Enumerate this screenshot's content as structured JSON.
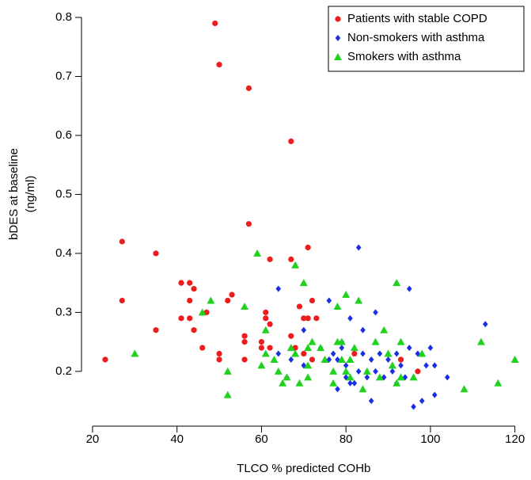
{
  "chart_data": {
    "type": "scatter",
    "xlabel": "TLCO % predicted COHb",
    "ylabel": [
      "bDES at baseline",
      "(ng/ml)"
    ],
    "xlim": [
      17.5,
      122.5
    ],
    "ylim": [
      0.13,
      0.8
    ],
    "xticks": [
      20,
      40,
      60,
      80,
      100,
      120
    ],
    "yticks": [
      0.2,
      0.3,
      0.4,
      0.5,
      0.6,
      0.7,
      0.8
    ],
    "legend": "top-right",
    "series": [
      {
        "name": "Patients with stable COPD",
        "color": "#ee1c1c",
        "marker": "circle",
        "x": [
          23,
          27,
          27,
          35,
          35,
          41,
          41,
          43,
          43,
          43,
          44,
          44,
          46,
          47,
          49,
          50,
          50,
          50,
          52,
          53,
          56,
          56,
          56,
          57,
          57,
          60,
          60,
          61,
          61,
          62,
          62,
          62,
          67,
          67,
          67,
          68,
          69,
          70,
          70,
          71,
          71,
          72,
          72,
          73,
          82,
          93,
          97
        ],
        "values": [
          0.22,
          0.42,
          0.32,
          0.4,
          0.27,
          0.35,
          0.29,
          0.35,
          0.32,
          0.29,
          0.34,
          0.27,
          0.24,
          0.3,
          0.79,
          0.72,
          0.23,
          0.22,
          0.32,
          0.33,
          0.26,
          0.25,
          0.22,
          0.68,
          0.45,
          0.25,
          0.24,
          0.3,
          0.29,
          0.39,
          0.28,
          0.24,
          0.59,
          0.39,
          0.26,
          0.24,
          0.31,
          0.29,
          0.23,
          0.41,
          0.29,
          0.32,
          0.22,
          0.29,
          0.23,
          0.22,
          0.2
        ]
      },
      {
        "name": "Non-smokers with asthma",
        "color": "#1a2ee6",
        "marker": "diamond",
        "x": [
          64,
          64,
          66,
          67,
          70,
          70,
          74,
          76,
          76,
          77,
          78,
          78,
          79,
          79,
          80,
          80,
          81,
          81,
          82,
          83,
          83,
          84,
          84,
          85,
          86,
          86,
          87,
          87,
          88,
          89,
          90,
          91,
          92,
          92,
          93,
          94,
          95,
          95,
          96,
          97,
          98,
          99,
          100,
          101,
          101,
          104,
          113
        ],
        "values": [
          0.34,
          0.23,
          0.19,
          0.22,
          0.27,
          0.21,
          0.24,
          0.32,
          0.22,
          0.23,
          0.17,
          0.22,
          0.25,
          0.24,
          0.21,
          0.19,
          0.29,
          0.18,
          0.18,
          0.41,
          0.2,
          0.27,
          0.23,
          0.19,
          0.22,
          0.15,
          0.3,
          0.2,
          0.23,
          0.19,
          0.22,
          0.2,
          0.23,
          0.18,
          0.21,
          0.19,
          0.34,
          0.24,
          0.14,
          0.23,
          0.15,
          0.21,
          0.24,
          0.21,
          0.16,
          0.19,
          0.28
        ]
      },
      {
        "name": "Smokers with asthma",
        "color": "#1ed21e",
        "marker": "triangle",
        "x": [
          30,
          46,
          48,
          52,
          52,
          56,
          59,
          60,
          61,
          61,
          63,
          64,
          65,
          66,
          67,
          68,
          68,
          69,
          70,
          71,
          71,
          71,
          72,
          74,
          75,
          77,
          77,
          78,
          78,
          79,
          79,
          80,
          80,
          81,
          81,
          82,
          83,
          84,
          85,
          87,
          88,
          89,
          90,
          91,
          92,
          92,
          93,
          93,
          96,
          98,
          108,
          112,
          116,
          120
        ],
        "values": [
          0.23,
          0.3,
          0.32,
          0.2,
          0.16,
          0.31,
          0.4,
          0.21,
          0.27,
          0.23,
          0.22,
          0.2,
          0.18,
          0.19,
          0.24,
          0.38,
          0.23,
          0.18,
          0.35,
          0.24,
          0.21,
          0.19,
          0.25,
          0.24,
          0.22,
          0.18,
          0.2,
          0.31,
          0.25,
          0.25,
          0.22,
          0.33,
          0.2,
          0.22,
          0.19,
          0.24,
          0.32,
          0.17,
          0.2,
          0.25,
          0.19,
          0.27,
          0.23,
          0.21,
          0.35,
          0.18,
          0.25,
          0.19,
          0.19,
          0.23,
          0.17,
          0.25,
          0.18,
          0.22
        ]
      }
    ]
  }
}
